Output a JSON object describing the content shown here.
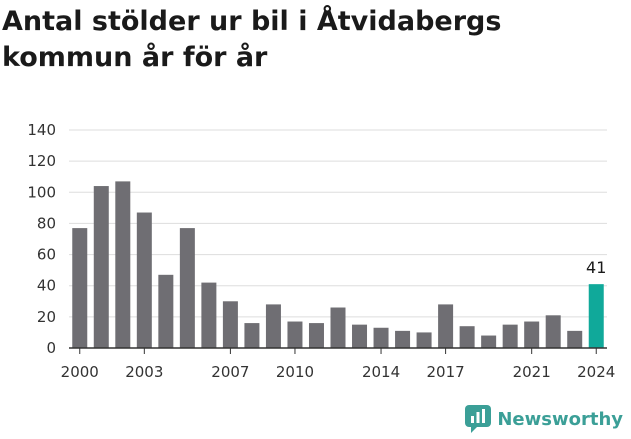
{
  "title": "Antal stölder ur bil i Åtvidabergs kommun år för år",
  "brand": {
    "name": "Newsworthy",
    "icon": "newsworthy-logo-icon",
    "color": "#3b9f97"
  },
  "colors": {
    "bar": "#6f6e73",
    "highlight": "#10a99a",
    "grid": "#dddddd",
    "axis": "#333333"
  },
  "chart_data": {
    "type": "bar",
    "categories": [
      "2000",
      "2001",
      "2002",
      "2003",
      "2004",
      "2005",
      "2006",
      "2007",
      "2008",
      "2009",
      "2010",
      "2011",
      "2012",
      "2013",
      "2014",
      "2015",
      "2016",
      "2017",
      "2018",
      "2019",
      "2020",
      "2021",
      "2022",
      "2023",
      "2024"
    ],
    "x_tick_labels": [
      "2000",
      "2003",
      "2007",
      "2010",
      "2014",
      "2017",
      "2021",
      "2024"
    ],
    "values": [
      77,
      104,
      107,
      87,
      47,
      77,
      42,
      30,
      16,
      28,
      17,
      16,
      26,
      15,
      13,
      11,
      10,
      28,
      14,
      8,
      15,
      17,
      21,
      11,
      41
    ],
    "highlight_index": 24,
    "data_labels": [
      {
        "index": 24,
        "text": "41"
      }
    ],
    "ylim": [
      0,
      140
    ],
    "yticks": [
      0,
      20,
      40,
      60,
      80,
      100,
      120,
      140
    ],
    "grid": true
  }
}
